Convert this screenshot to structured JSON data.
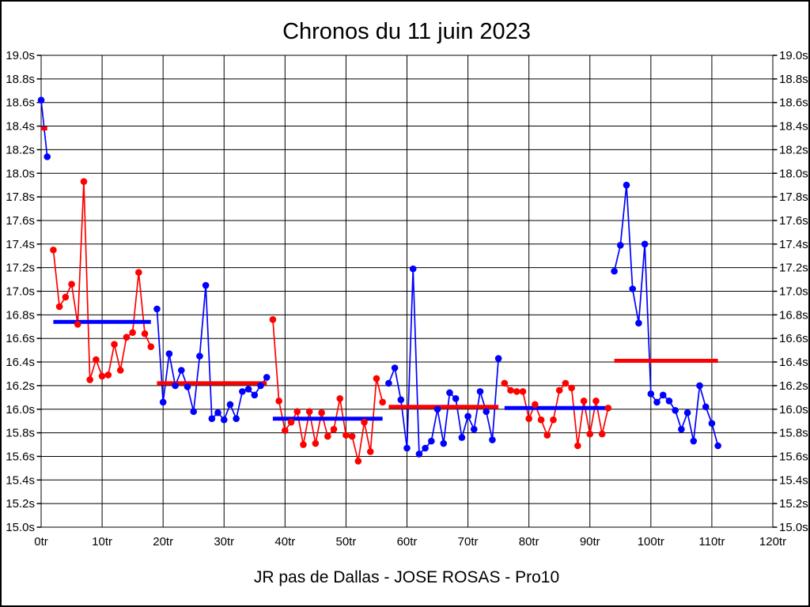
{
  "page": {
    "title": "Chronos du 11 juin 2023",
    "footer": "JR pas de Dallas - JOSE ROSAS - Pro10"
  },
  "chart_data": {
    "type": "line",
    "title": "Chronos du 11 juin 2023",
    "footer_label": "JR pas de Dallas - JOSE ROSAS - Pro10",
    "xlabel_unit": "tr",
    "ylabel_unit": "s",
    "xlim": [
      0,
      120
    ],
    "ylim": [
      15.0,
      19.0
    ],
    "y_step": 0.2,
    "grid": true,
    "legend": "none",
    "colors": {
      "blue": "#0000ff",
      "red": "#ff0000",
      "grid": "#000000"
    },
    "x_axis": {
      "values": [
        0,
        10,
        20,
        30,
        40,
        50,
        60,
        70,
        80,
        90,
        100,
        110,
        120
      ],
      "labels": [
        "0tr",
        "10tr",
        "20tr",
        "30tr",
        "40tr",
        "50tr",
        "60tr",
        "70tr",
        "80tr",
        "90tr",
        "100tr",
        "110tr",
        "120tr"
      ]
    },
    "y_axis": {
      "values": [
        19.0,
        18.8,
        18.6,
        18.4,
        18.2,
        18.0,
        17.8,
        17.6,
        17.4,
        17.2,
        17.0,
        16.8,
        16.6,
        16.4,
        16.2,
        16.0,
        15.8,
        15.6,
        15.4,
        15.2,
        15.0
      ],
      "labels": [
        "19.0s",
        "18.8s",
        "18.6s",
        "18.4s",
        "18.2s",
        "18.0s",
        "17.8s",
        "17.6s",
        "17.4s",
        "17.2s",
        "17.0s",
        "16.8s",
        "16.6s",
        "16.4s",
        "16.2s",
        "16.0s",
        "15.8s",
        "15.6s",
        "15.4s",
        "15.2s",
        "15.0s"
      ]
    },
    "sessions": [
      {
        "start_lap": 0,
        "color": "blue",
        "avg_color": "red",
        "avg": 18.38,
        "times": [
          18.62,
          18.14
        ]
      },
      {
        "start_lap": 2,
        "color": "red",
        "avg_color": "blue",
        "avg": 16.74,
        "times": [
          17.35,
          16.87,
          16.95,
          17.06,
          16.72,
          17.93,
          16.25,
          16.42,
          16.28,
          16.29,
          16.55,
          16.33,
          16.61,
          16.65,
          17.16,
          16.64,
          16.53
        ]
      },
      {
        "start_lap": 19,
        "color": "blue",
        "avg_color": "red",
        "avg": 16.22,
        "times": [
          16.85,
          16.06,
          16.47,
          16.2,
          16.33,
          16.19,
          15.98,
          16.45,
          17.05,
          15.92,
          15.97,
          15.91,
          16.04,
          15.92,
          16.15,
          16.17,
          16.12,
          16.2,
          16.27
        ]
      },
      {
        "start_lap": 38,
        "color": "red",
        "avg_color": "blue",
        "avg": 15.92,
        "times": [
          16.76,
          16.07,
          15.82,
          15.89,
          15.98,
          15.7,
          15.98,
          15.71,
          15.97,
          15.77,
          15.83,
          16.09,
          15.78,
          15.77,
          15.56,
          15.89,
          15.64,
          16.26,
          16.06
        ]
      },
      {
        "start_lap": 57,
        "color": "blue",
        "avg_color": "red",
        "avg": 16.02,
        "times": [
          16.22,
          16.35,
          16.08,
          15.67,
          17.19,
          15.62,
          15.67,
          15.73,
          16.0,
          15.71,
          16.14,
          16.09,
          15.76,
          15.94,
          15.83,
          16.15,
          15.98,
          15.74,
          16.43
        ]
      },
      {
        "start_lap": 76,
        "color": "red",
        "avg_color": "blue",
        "avg": 16.01,
        "times": [
          16.22,
          16.16,
          16.15,
          16.15,
          15.92,
          16.04,
          15.91,
          15.78,
          15.91,
          16.16,
          16.22,
          16.18,
          15.69,
          16.07,
          15.79,
          16.07,
          15.79,
          16.01
        ]
      },
      {
        "start_lap": 94,
        "color": "blue",
        "avg_color": "red",
        "avg": 16.41,
        "times": [
          17.17,
          17.39,
          17.9,
          17.02,
          16.73,
          17.4,
          16.13,
          16.06,
          16.12,
          16.07,
          15.99,
          15.83,
          15.97,
          15.73,
          16.2,
          16.02,
          15.88,
          15.69
        ]
      }
    ]
  }
}
